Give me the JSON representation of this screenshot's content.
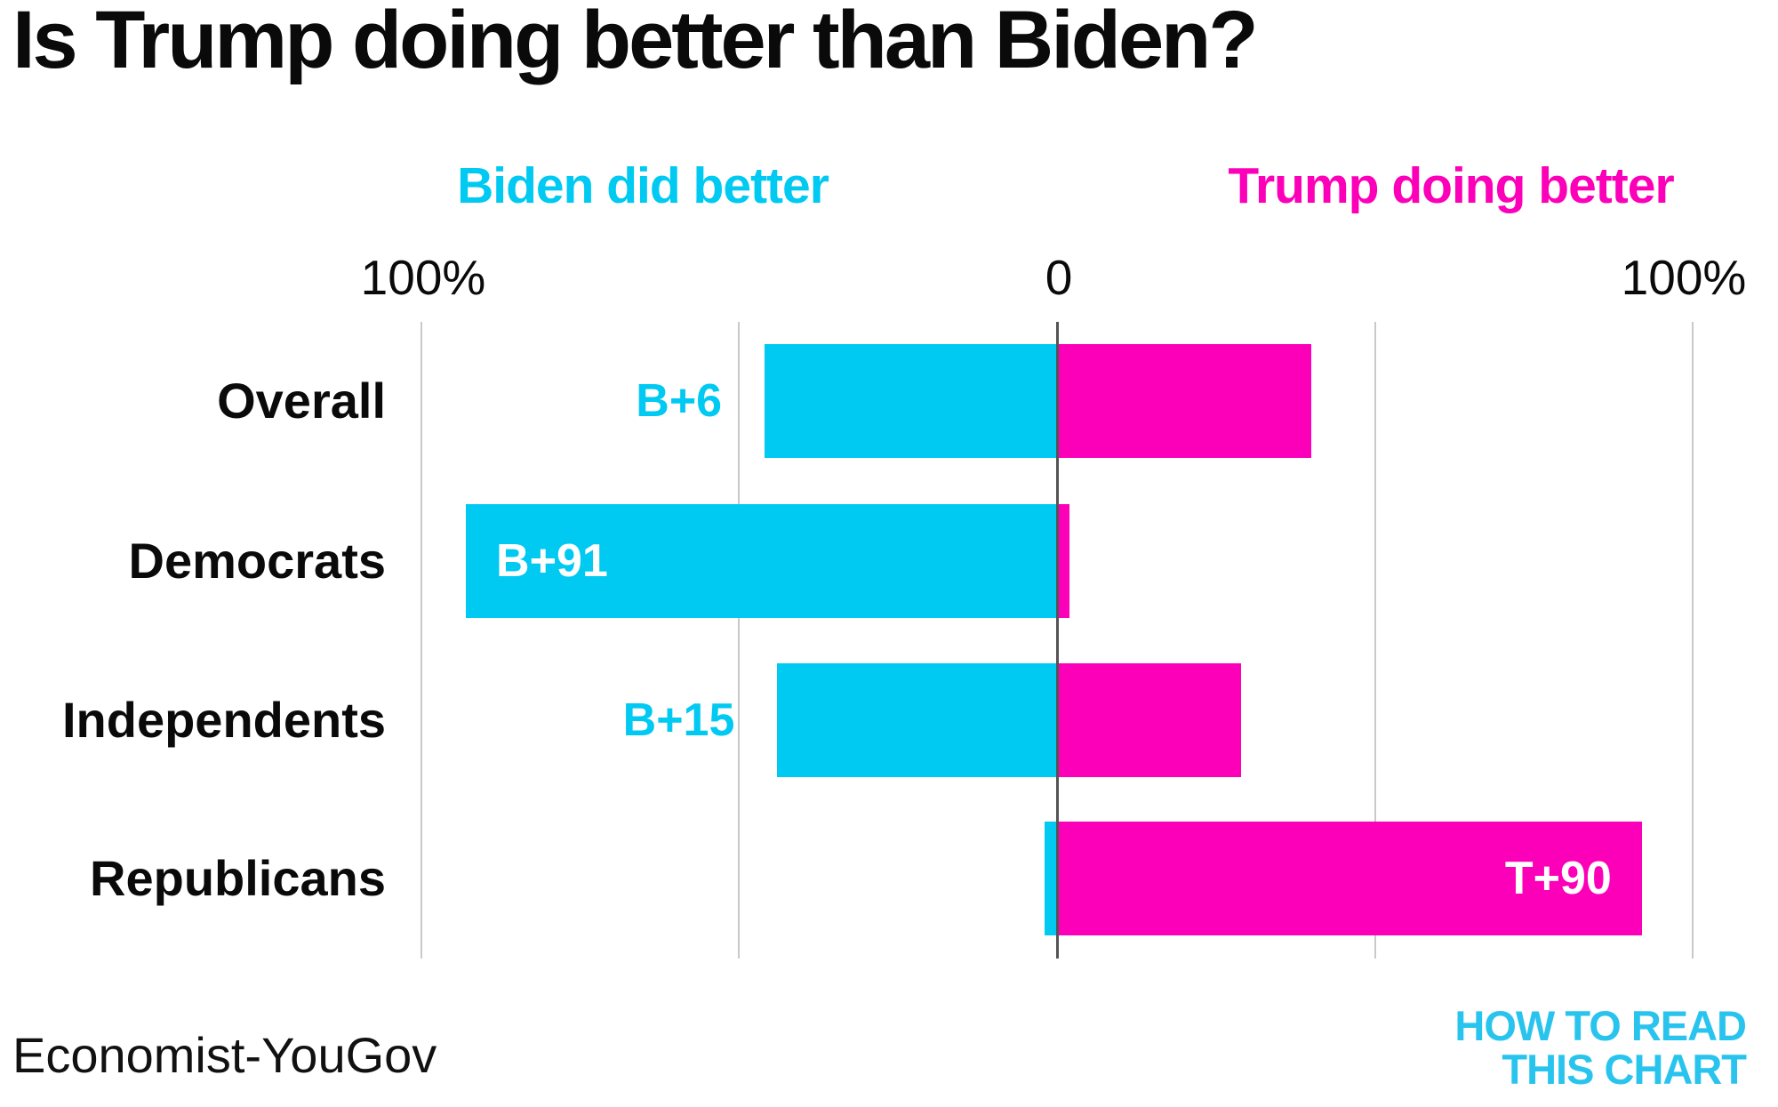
{
  "title": "Is Trump doing better than Biden?",
  "legend": {
    "biden": "Biden did better",
    "trump": "Trump doing better"
  },
  "axis": {
    "left_tick": "100%",
    "center_tick": "0",
    "right_tick": "100%"
  },
  "source": "Economist-YouGov",
  "logo": {
    "line1": "HOW TO READ",
    "line2": "THIS CHART"
  },
  "colors": {
    "biden": "#00c9f2",
    "trump": "#fc00b9",
    "logo": "#29c4ee",
    "grid": "#c9c9c9",
    "axis_line": "#545454",
    "text": "#0a0a0a"
  },
  "chart_data": {
    "type": "bar",
    "orientation": "horizontal-diverging",
    "title": "Is Trump doing better than Biden?",
    "categories": [
      "Overall",
      "Democrats",
      "Independents",
      "Republicans"
    ],
    "series": [
      {
        "name": "Biden did better",
        "values": [
          46,
          93,
          44,
          2
        ]
      },
      {
        "name": "Trump doing better",
        "values": [
          40,
          2,
          29,
          92
        ]
      }
    ],
    "net_labels": [
      {
        "category": "Overall",
        "text": "B+6",
        "side": "biden",
        "placement": "outside"
      },
      {
        "category": "Democrats",
        "text": "B+91",
        "side": "biden",
        "placement": "inside"
      },
      {
        "category": "Independents",
        "text": "B+15",
        "side": "biden",
        "placement": "outside"
      },
      {
        "category": "Republicans",
        "text": "T+90",
        "side": "trump",
        "placement": "inside"
      }
    ],
    "xlim": [
      -100,
      100
    ],
    "x_ticks": [
      "100%",
      "0",
      "100%"
    ],
    "grid": true,
    "legend_position": "top",
    "source": "Economist-YouGov"
  }
}
